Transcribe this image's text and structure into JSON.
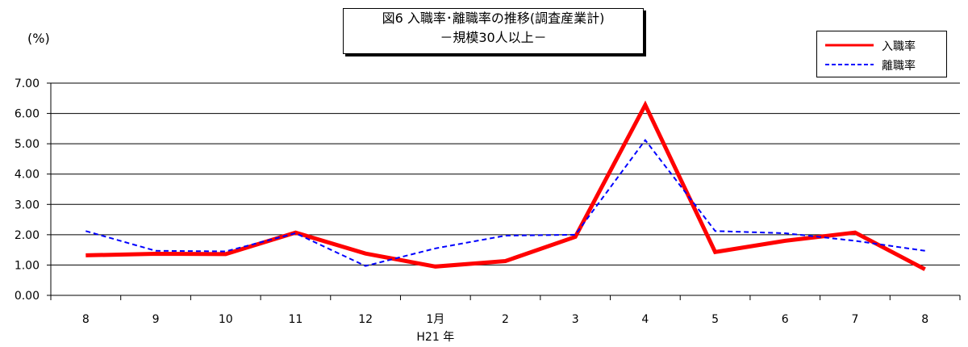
{
  "chart_data": {
    "type": "line",
    "title": "図6 入職率･離職率の推移(調査産業計)",
    "subtitle": "－規模30人以上－",
    "ylabel": "(%)",
    "ylim": [
      0,
      7
    ],
    "yticks": [
      "0.00",
      "1.00",
      "2.00",
      "3.00",
      "4.00",
      "5.00",
      "6.00",
      "7.00"
    ],
    "categories": [
      "8",
      "9",
      "10",
      "11",
      "12",
      "1月",
      "2",
      "3",
      "4",
      "5",
      "6",
      "7",
      "8"
    ],
    "xlabel_note": "H21 年",
    "grid": true,
    "legend_position": "top-right",
    "series": [
      {
        "name": "入職率",
        "color": "#ff0000",
        "style": "solid",
        "values": [
          1.32,
          1.37,
          1.36,
          2.07,
          1.38,
          0.95,
          1.13,
          1.93,
          6.28,
          1.43,
          1.8,
          2.07,
          0.86
        ]
      },
      {
        "name": "離職率",
        "color": "#0000ff",
        "style": "dashed",
        "values": [
          2.12,
          1.47,
          1.45,
          2.05,
          0.97,
          1.55,
          1.97,
          2.0,
          5.12,
          2.12,
          2.05,
          1.8,
          1.47
        ]
      }
    ]
  }
}
